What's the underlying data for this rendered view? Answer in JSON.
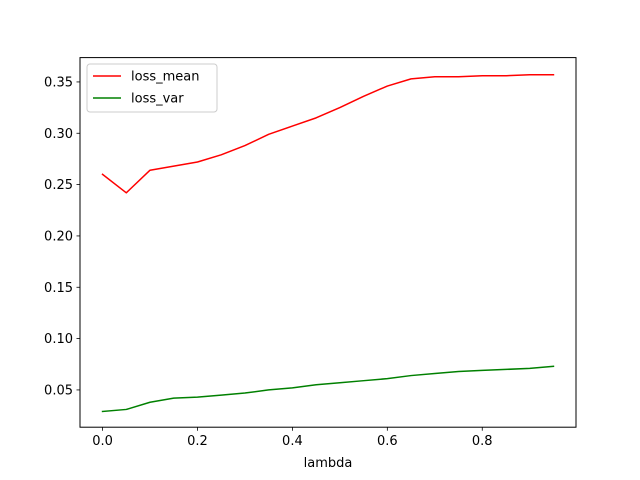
{
  "chart_data": {
    "type": "line",
    "title": "",
    "xlabel": "lambda",
    "ylabel": "",
    "xlim": [
      -0.0475,
      0.9975
    ],
    "ylim": [
      0.0137,
      0.3737
    ],
    "xticks": [
      0.0,
      0.2,
      0.4,
      0.6,
      0.8
    ],
    "xtick_labels": [
      "0.0",
      "0.2",
      "0.4",
      "0.6",
      "0.8"
    ],
    "yticks": [
      0.05,
      0.1,
      0.15,
      0.2,
      0.25,
      0.3,
      0.35
    ],
    "ytick_labels": [
      "0.05",
      "0.10",
      "0.15",
      "0.20",
      "0.25",
      "0.30",
      "0.35"
    ],
    "grid": false,
    "legend_position": "upper-left",
    "x": [
      0.0,
      0.05,
      0.1,
      0.15,
      0.2,
      0.25,
      0.3,
      0.35,
      0.4,
      0.45,
      0.5,
      0.55,
      0.6,
      0.65,
      0.7,
      0.75,
      0.8,
      0.85,
      0.9,
      0.95
    ],
    "series": [
      {
        "name": "loss_mean",
        "color": "#ff0000",
        "values": [
          0.26,
          0.242,
          0.264,
          0.268,
          0.272,
          0.279,
          0.288,
          0.299,
          0.307,
          0.315,
          0.325,
          0.336,
          0.346,
          0.353,
          0.355,
          0.355,
          0.356,
          0.356,
          0.357,
          0.357
        ]
      },
      {
        "name": "loss_var",
        "color": "#008000",
        "values": [
          0.029,
          0.031,
          0.038,
          0.042,
          0.043,
          0.045,
          0.047,
          0.05,
          0.052,
          0.055,
          0.057,
          0.059,
          0.061,
          0.064,
          0.066,
          0.068,
          0.069,
          0.07,
          0.071,
          0.073
        ]
      }
    ]
  }
}
